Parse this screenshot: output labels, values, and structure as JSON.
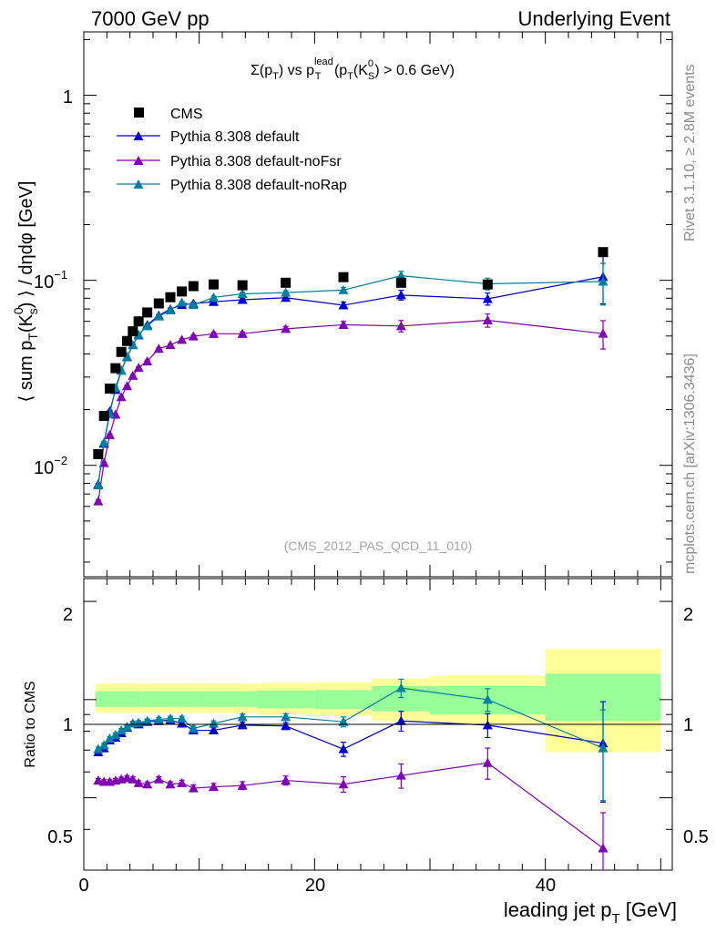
{
  "header": {
    "left": "7000 GeV pp",
    "right": "Underlying Event"
  },
  "side": {
    "rivet": "Rivet 3.1.10, ≥ 2.8M events",
    "source": "mcplots.cern.ch [arXiv:1306.3436]"
  },
  "main_panel": {
    "title": {
      "p1": "Σ(p",
      "s1": "T",
      "p2": ") vs p",
      "sup2": "lead",
      "s2": "T",
      "p3": " (p",
      "s3": "T",
      "p4": "(K",
      "sup4": "0",
      "s4": "S",
      "p5": ") > 0.6 GeV)"
    },
    "ylabel": {
      "p1": "⟨ sum p",
      "s1": "T",
      "p2": "(K",
      "sup2": "0",
      "s2": "s",
      "p3": ") ⟩ / dηdφ [GeV]"
    },
    "analysis_tag": "(CMS_2012_PAS_QCD_11_010)",
    "tick_labels": {
      "t1e0": "1",
      "t1e-1": {
        "base": "10",
        "exp": "−1"
      },
      "t1e-2": {
        "base": "10",
        "exp": "−2"
      }
    }
  },
  "ratio_panel": {
    "ylabel": "Ratio to CMS",
    "tick_labels": [
      "0.5",
      "1",
      "2"
    ]
  },
  "xaxis": {
    "label_main": "leading jet p",
    "label_sub": "T",
    "label_unit": " [GeV]",
    "tick_labels": [
      "0",
      "20",
      "40"
    ]
  },
  "legend": {
    "cms": "CMS",
    "default": "Pythia 8.308 default",
    "nofsr": "Pythia 8.308 default-noFsr",
    "norap": "Pythia 8.308 default-noRap"
  },
  "chart_data": {
    "type": "scatter",
    "x_range": [
      0,
      51
    ],
    "main_y_range": [
      0.0025,
      2.2
    ],
    "main_y_scale": "log",
    "ratio_y_range": [
      0.3,
      2.35
    ],
    "ratio_y_scale": "log",
    "cms": {
      "name": "CMS",
      "color": "#000000",
      "x": [
        1.25,
        1.75,
        2.25,
        2.75,
        3.25,
        3.75,
        4.25,
        4.75,
        5.5,
        6.5,
        7.5,
        8.5,
        9.5,
        11.25,
        13.75,
        17.5,
        22.5,
        27.5,
        35,
        45
      ],
      "y": [
        0.0115,
        0.0185,
        0.026,
        0.0335,
        0.041,
        0.047,
        0.053,
        0.06,
        0.067,
        0.075,
        0.081,
        0.087,
        0.093,
        0.095,
        0.094,
        0.097,
        0.104,
        0.097,
        0.095,
        0.142
      ],
      "band_edges": [
        1,
        5,
        10,
        15,
        20,
        25,
        30,
        40,
        50
      ],
      "band_stat_sys": [
        [
          0.91,
          1.12
        ],
        [
          0.91,
          1.12
        ],
        [
          0.91,
          1.12
        ],
        [
          0.9,
          1.125
        ],
        [
          0.89,
          1.13
        ],
        [
          0.86,
          1.16
        ],
        [
          0.84,
          1.18
        ],
        [
          0.69,
          1.43
        ]
      ],
      "band_stat": [
        [
          0.95,
          1.06
        ],
        [
          0.95,
          1.06
        ],
        [
          0.95,
          1.06
        ],
        [
          0.94,
          1.065
        ],
        [
          0.935,
          1.07
        ],
        [
          0.92,
          1.1
        ],
        [
          0.9,
          1.1
        ],
        [
          0.86,
          1.2
        ]
      ]
    },
    "series": [
      {
        "name": "Pythia 8.308 default",
        "color": "#0000cc",
        "x": [
          1.25,
          1.75,
          2.25,
          2.75,
          3.25,
          3.75,
          4.25,
          4.75,
          5.5,
          6.5,
          7.5,
          8.5,
          9.5,
          11.25,
          13.75,
          17.5,
          22.5,
          27.5,
          35,
          45
        ],
        "y": [
          0.0079,
          0.0131,
          0.0196,
          0.0256,
          0.0325,
          0.0385,
          0.0447,
          0.0505,
          0.0574,
          0.0645,
          0.0698,
          0.0736,
          0.0749,
          0.0765,
          0.0785,
          0.0805,
          0.0733,
          0.0832,
          0.0794,
          0.1045
        ],
        "yerr": [
          0.0001,
          0.0002,
          0.0003,
          0.0004,
          0.0005,
          0.0006,
          0.0006,
          0.0007,
          0.0007,
          0.0008,
          0.0009,
          0.001,
          0.0011,
          0.0013,
          0.0016,
          0.002,
          0.003,
          0.005,
          0.006,
          0.03
        ],
        "ratio": [
          0.69,
          0.71,
          0.75,
          0.765,
          0.79,
          0.82,
          0.845,
          0.84,
          0.855,
          0.86,
          0.865,
          0.845,
          0.805,
          0.805,
          0.835,
          0.83,
          0.705,
          0.86,
          0.835,
          0.735
        ],
        "ratio_err": [
          0.01,
          0.01,
          0.01,
          0.01,
          0.01,
          0.012,
          0.012,
          0.012,
          0.012,
          0.012,
          0.013,
          0.013,
          0.015,
          0.015,
          0.018,
          0.02,
          0.035,
          0.06,
          0.07,
          0.25
        ]
      },
      {
        "name": "Pythia 8.308 default-noFsr",
        "color": "#8000b3",
        "x": [
          1.25,
          1.75,
          2.25,
          2.75,
          3.25,
          3.75,
          4.25,
          4.75,
          5.5,
          6.5,
          7.5,
          8.5,
          9.5,
          11.25,
          13.75,
          17.5,
          22.5,
          27.5,
          35,
          45
        ],
        "y": [
          0.0064,
          0.0103,
          0.0146,
          0.0188,
          0.0234,
          0.0268,
          0.0305,
          0.0337,
          0.0365,
          0.0427,
          0.0447,
          0.0477,
          0.0498,
          0.0514,
          0.0514,
          0.0547,
          0.0575,
          0.0566,
          0.0608,
          0.0515
        ],
        "yerr": [
          0.0001,
          0.0001,
          0.0002,
          0.0002,
          0.0003,
          0.0003,
          0.0004,
          0.0004,
          0.0005,
          0.0005,
          0.0006,
          0.0007,
          0.0008,
          0.001,
          0.0012,
          0.0016,
          0.0025,
          0.004,
          0.005,
          0.009
        ],
        "ratio": [
          0.565,
          0.56,
          0.56,
          0.565,
          0.57,
          0.575,
          0.57,
          0.555,
          0.55,
          0.57,
          0.55,
          0.555,
          0.535,
          0.54,
          0.545,
          0.565,
          0.55,
          0.585,
          0.64,
          0.35
        ],
        "ratio_err": [
          0.008,
          0.008,
          0.008,
          0.008,
          0.008,
          0.008,
          0.009,
          0.009,
          0.009,
          0.01,
          0.01,
          0.011,
          0.012,
          0.013,
          0.015,
          0.018,
          0.03,
          0.05,
          0.07,
          0.1
        ]
      },
      {
        "name": "Pythia 8.308 default-noRap",
        "color": "#0080a0",
        "x": [
          1.25,
          1.75,
          2.25,
          2.75,
          3.25,
          3.75,
          4.25,
          4.75,
          5.5,
          6.5,
          7.5,
          8.5,
          9.5,
          11.25,
          13.75,
          17.5,
          22.5,
          27.5,
          35,
          45
        ],
        "y": [
          0.0078,
          0.0133,
          0.019,
          0.0262,
          0.0326,
          0.0387,
          0.0447,
          0.0508,
          0.0566,
          0.0638,
          0.0689,
          0.0759,
          0.0736,
          0.0808,
          0.0845,
          0.0858,
          0.0885,
          0.1058,
          0.0957,
          0.0985
        ],
        "yerr": [
          0.0001,
          0.0002,
          0.0003,
          0.0004,
          0.0005,
          0.0006,
          0.0006,
          0.0007,
          0.0007,
          0.0008,
          0.0009,
          0.001,
          0.0011,
          0.0013,
          0.0016,
          0.002,
          0.003,
          0.006,
          0.007,
          0.025
        ],
        "ratio": [
          0.705,
          0.725,
          0.76,
          0.78,
          0.805,
          0.825,
          0.845,
          0.85,
          0.86,
          0.87,
          0.875,
          0.875,
          0.815,
          0.845,
          0.885,
          0.885,
          0.855,
          1.085,
          1.0,
          0.71
        ],
        "ratio_err": [
          0.01,
          0.01,
          0.01,
          0.01,
          0.01,
          0.012,
          0.012,
          0.012,
          0.012,
          0.012,
          0.013,
          0.013,
          0.015,
          0.015,
          0.018,
          0.02,
          0.03,
          0.07,
          0.08,
          0.22
        ]
      }
    ]
  }
}
